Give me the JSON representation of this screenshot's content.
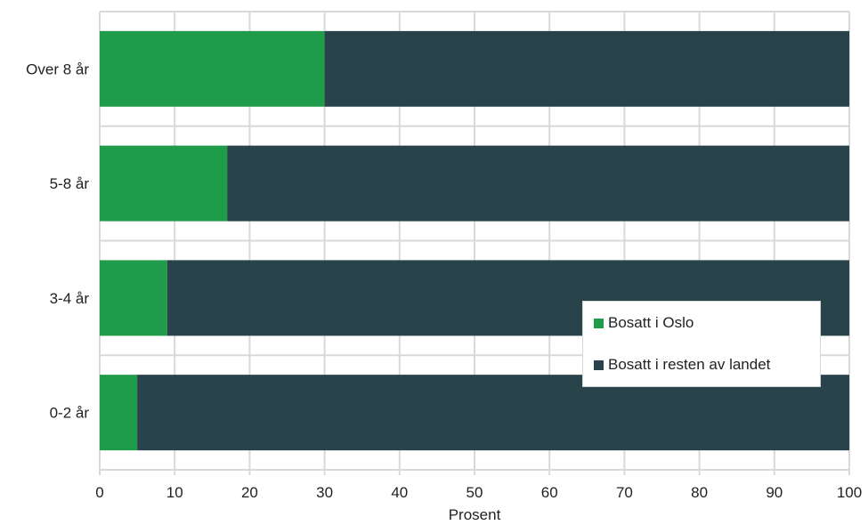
{
  "chart_data": {
    "type": "bar",
    "orientation": "horizontal",
    "stacked": true,
    "categories": [
      "Over 8 år",
      "5-8 år",
      "3-4 år",
      "0-2 år"
    ],
    "series": [
      {
        "name": "Bosatt i Oslo",
        "color": "#1f9c49",
        "values": [
          30,
          17,
          9,
          5
        ]
      },
      {
        "name": "Bosatt i resten av landet",
        "color": "#29434a",
        "values": [
          70,
          83,
          91,
          95
        ]
      }
    ],
    "xlabel": "Prosent",
    "ylabel": "",
    "xlim": [
      0,
      100
    ],
    "xticks": [
      "0",
      "10",
      "20",
      "30",
      "40",
      "50",
      "60",
      "70",
      "80",
      "90",
      "100"
    ],
    "grid": true,
    "legend_position": "lower-right"
  }
}
